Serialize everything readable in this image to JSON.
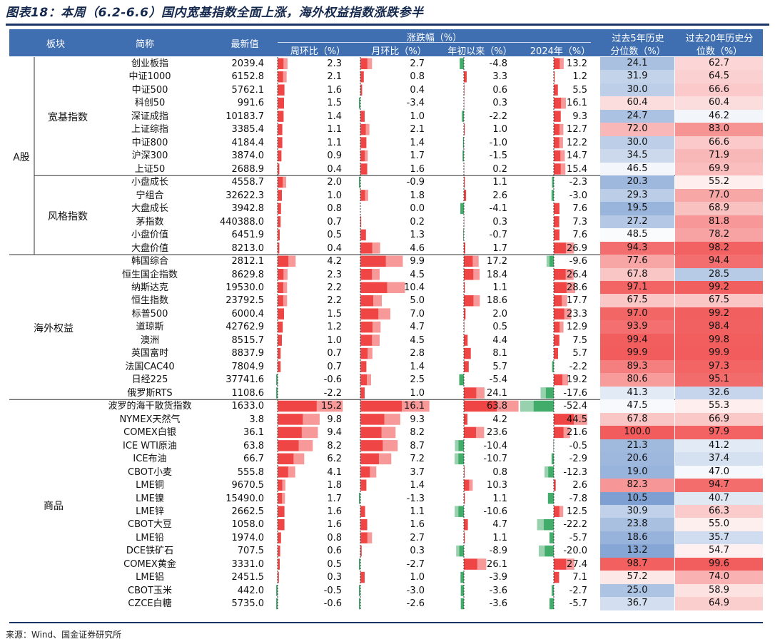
{
  "title": "图表18：本周（6.2-6.6）国内宽基指数全面上涨，海外权益指数涨跌参半",
  "source": "来源：Wind、国金证券研究所",
  "colors": {
    "header_bg": "#3f6fb1",
    "pos_bar": "#ef3b3b",
    "neg_bar": "#2ea35a",
    "pct_high": "#f25c5c",
    "pct_mid": "#ffffff",
    "pct_low": "#5a86c6"
  },
  "headers": {
    "sector": "板块",
    "name": "简称",
    "latest": "最新值",
    "change_group": "涨跌幅（%）",
    "weekly": "周环比（%）",
    "monthly": "月环比（%）",
    "ytd": "年初以来（%）",
    "y2024": "2024年（%）",
    "pct5": [
      "过去5年历史",
      "分位数（%）"
    ],
    "pct20": [
      "过去20年历史分",
      "位数（%）"
    ]
  },
  "chart_data": {
    "type": "table",
    "columns": [
      "简称",
      "最新值",
      "周环比（%）",
      "月环比（%）",
      "年初以来（%）",
      "2024年（%）",
      "过去5年历史分位数（%）",
      "过去20年历史分位数（%）"
    ],
    "groups": [
      {
        "sector": "A股",
        "subgroup": "宽基指数",
        "rows": [
          [
            "创业板指",
            "2039.4",
            2.3,
            2.7,
            -4.8,
            13.2,
            24.1,
            62.7
          ],
          [
            "中证1000",
            "6152.8",
            2.1,
            0.8,
            3.3,
            1.2,
            31.9,
            64.5
          ],
          [
            "中证500",
            "5762.1",
            1.6,
            0.4,
            0.6,
            5.5,
            30.0,
            66.6
          ],
          [
            "科创50",
            "991.6",
            1.5,
            -3.4,
            0.3,
            16.1,
            60.4,
            60.4
          ],
          [
            "深证成指",
            "10183.7",
            1.4,
            1.0,
            -2.2,
            9.3,
            24.7,
            46.2
          ],
          [
            "上证综指",
            "3385.4",
            1.1,
            2.1,
            1.0,
            12.7,
            72.0,
            83.0
          ],
          [
            "中证800",
            "4184.4",
            1.1,
            1.4,
            -1.0,
            12.2,
            30.0,
            66.6
          ],
          [
            "沪深300",
            "3874.0",
            0.9,
            1.7,
            -1.5,
            14.7,
            34.5,
            71.9
          ],
          [
            "上证50",
            "2688.9",
            0.4,
            1.6,
            0.2,
            15.4,
            46.5,
            69.9
          ]
        ]
      },
      {
        "sector": "A股",
        "subgroup": "风格指数",
        "rows": [
          [
            "小盘成长",
            "4558.7",
            2.0,
            -0.9,
            1.1,
            -2.3,
            20.3,
            55.2
          ],
          [
            "宁组合",
            "32622.3",
            1.0,
            1.8,
            2.6,
            -3.0,
            29.3,
            77.0
          ],
          [
            "大盘成长",
            "3942.8",
            0.8,
            0.0,
            -4.1,
            7.6,
            19.5,
            68.9
          ],
          [
            "茅指数",
            "440388.0",
            0.7,
            0.2,
            0.3,
            7.3,
            27.2,
            81.8
          ],
          [
            "小盘价值",
            "6451.9",
            0.5,
            1.3,
            -0.7,
            7.6,
            48.5,
            78.2
          ],
          [
            "大盘价值",
            "8213.0",
            0.4,
            4.6,
            1.7,
            26.9,
            94.3,
            98.2
          ]
        ]
      },
      {
        "sector": "海外权益",
        "subgroup": "",
        "rows": [
          [
            "韩国综合",
            "2812.1",
            4.2,
            9.9,
            17.2,
            -9.6,
            77.6,
            94.4
          ],
          [
            "恒生国企指数",
            "8629.8",
            2.3,
            4.5,
            18.4,
            26.4,
            67.8,
            28.5
          ],
          [
            "纳斯达克",
            "19530.0",
            2.2,
            10.4,
            1.1,
            28.6,
            97.1,
            99.2
          ],
          [
            "恒生指数",
            "23792.5",
            2.2,
            5.0,
            18.6,
            17.7,
            67.5,
            67.5
          ],
          [
            "标普500",
            "6000.4",
            1.5,
            7.0,
            2.0,
            23.3,
            97.0,
            99.2
          ],
          [
            "道琼斯",
            "42762.9",
            1.2,
            4.7,
            0.5,
            12.9,
            93.9,
            98.4
          ],
          [
            "澳洲",
            "8515.7",
            1.0,
            4.5,
            4.4,
            7.5,
            99.4,
            99.8
          ],
          [
            "英国富时",
            "8837.9",
            0.7,
            2.8,
            8.1,
            5.7,
            99.9,
            99.9
          ],
          [
            "法国CAC40",
            "7804.9",
            0.7,
            1.4,
            5.7,
            -2.2,
            89.3,
            97.3
          ],
          [
            "日经225",
            "37741.6",
            -0.6,
            2.5,
            -5.4,
            19.2,
            80.6,
            95.1
          ],
          [
            "俄罗斯RTS",
            "1108.6",
            -2.2,
            1.0,
            24.1,
            -17.6,
            41.3,
            32.6
          ]
        ]
      },
      {
        "sector": "商品",
        "subgroup": "",
        "rows": [
          [
            "波罗的海干散货指数",
            "1633.0",
            15.2,
            16.1,
            63.8,
            -52.4,
            47.5,
            55.3
          ],
          [
            "NYMEX天然气",
            "3.8",
            9.8,
            9.3,
            4.2,
            44.5,
            67.8,
            66.9
          ],
          [
            "COMEX白银",
            "36.1",
            9.4,
            8.2,
            23.6,
            21.6,
            100.0,
            97.9
          ],
          [
            "ICE WTI原油",
            "63.8",
            8.2,
            8.7,
            -10.4,
            -0.5,
            21.3,
            41.2
          ],
          [
            "ICE布油",
            "66.7",
            6.2,
            7.2,
            -10.7,
            -2.9,
            20.6,
            37.4
          ],
          [
            "CBOT小麦",
            "555.8",
            4.1,
            3.7,
            0.8,
            -12.3,
            19.0,
            47.0
          ],
          [
            "LME铜",
            "9670.5",
            1.8,
            1.4,
            10.3,
            2.6,
            82.3,
            94.7
          ],
          [
            "LME镍",
            "15490.0",
            1.7,
            -1.3,
            1.1,
            -7.8,
            10.5,
            40.7
          ],
          [
            "LME锌",
            "2662.5",
            1.6,
            1.1,
            -10.6,
            12.5,
            30.9,
            66.3
          ],
          [
            "CBOT大豆",
            "1058.0",
            1.6,
            1.6,
            4.7,
            -22.2,
            23.8,
            55.0
          ],
          [
            "LME铅",
            "1974.0",
            0.8,
            2.7,
            1.1,
            -5.7,
            18.6,
            35.7
          ],
          [
            "DCE铁矿石",
            "707.5",
            0.6,
            0.3,
            -8.9,
            -20.0,
            13.2,
            54.7
          ],
          [
            "COMEX黄金",
            "3331.0",
            0.5,
            -2.7,
            26.1,
            27.4,
            98.7,
            99.6
          ],
          [
            "LME铝",
            "2451.5",
            0.3,
            1.0,
            -3.9,
            7.1,
            57.2,
            74.0
          ],
          [
            "CBOT玉米",
            "442.0",
            -0.5,
            -3.0,
            -3.6,
            -2.7,
            25.0,
            58.9
          ],
          [
            "CZCE白糖",
            "5735.0",
            -0.6,
            -2.6,
            -3.6,
            -5.7,
            36.7,
            64.9
          ]
        ]
      }
    ]
  }
}
